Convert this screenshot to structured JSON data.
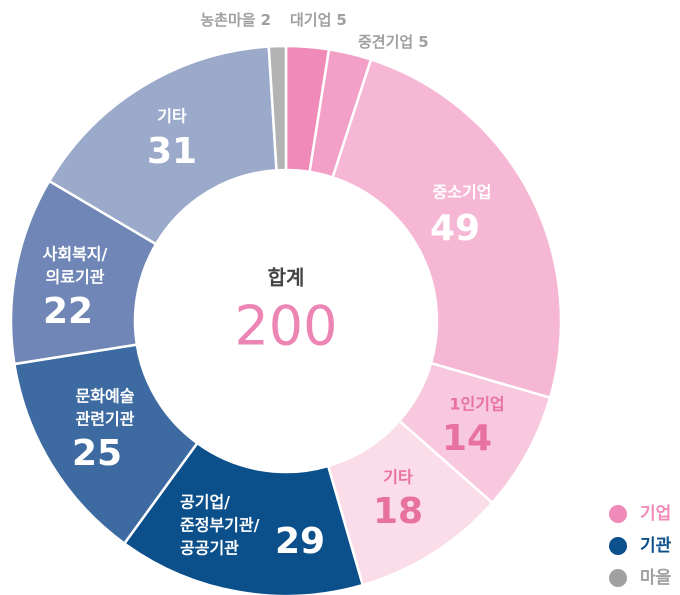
{
  "chart_data": {
    "type": "donut",
    "categories": [
      [
        "대기업"
      ],
      [
        "중견기업"
      ],
      [
        "중소기업"
      ],
      [
        "1인기업"
      ],
      [
        "기타"
      ],
      [
        "공기업/",
        "준정부기관/",
        "공공기관"
      ],
      [
        "문화예술",
        "관련기관"
      ],
      [
        "사회복지/",
        "의료기관"
      ],
      [
        "기타"
      ],
      [
        "농촌마을"
      ]
    ],
    "values": [
      5,
      5,
      49,
      14,
      18,
      29,
      25,
      22,
      31,
      2
    ],
    "colors": [
      "#f08ab8",
      "#f3a0c8",
      "#f6b7d5",
      "#f8c8de",
      "#fbdce9",
      "#0b4f8b",
      "#3d6ba1",
      "#6f86b6",
      "#9baacb",
      "#b3b3b3"
    ],
    "total_label": "합계",
    "total": 200,
    "legend": [
      {
        "name": "기업",
        "color": "#f08ab8"
      },
      {
        "name": "기관",
        "color": "#0b4f8b"
      },
      {
        "name": "마을",
        "color": "#a0a0a0"
      }
    ]
  }
}
